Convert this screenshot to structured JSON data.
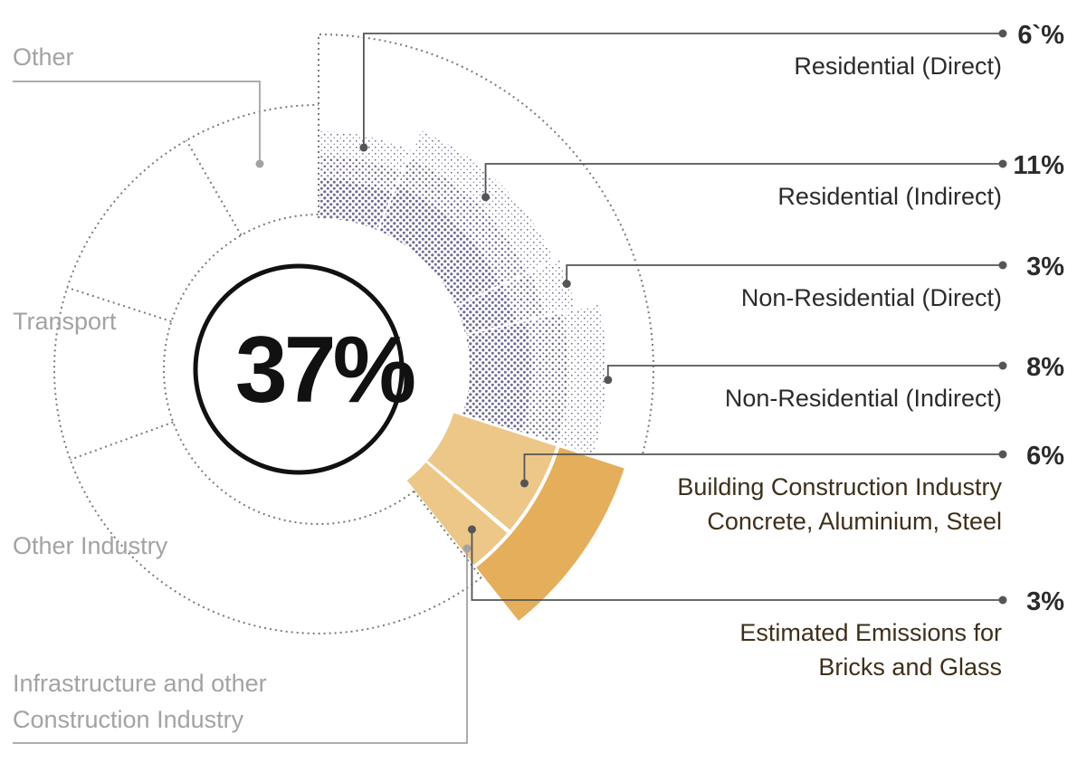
{
  "chart_data": {
    "type": "pie",
    "center_label": "37%",
    "segments": [
      {
        "label": "Residential (Direct)",
        "value_label": "6`%",
        "value": 6,
        "group": "buildings",
        "color": "#6f6c93"
      },
      {
        "label": "Residential (Indirect)",
        "value_label": "11%",
        "value": 11,
        "group": "buildings",
        "color": "#6f6c93"
      },
      {
        "label": "Non-Residential (Direct)",
        "value_label": "3%",
        "value": 3,
        "group": "buildings",
        "color": "#6f6c93"
      },
      {
        "label": "Non-Residential (Indirect)",
        "value_label": "8%",
        "value": 8,
        "group": "buildings",
        "color": "#6f6c93"
      },
      {
        "label_lines": [
          "Building Construction Industry",
          "Concrete, Aluminium, Steel"
        ],
        "value_label": "6%",
        "value": 6,
        "group": "construction",
        "color": "#ecc788"
      },
      {
        "label_lines": [
          "Estimated Emissions for",
          "Bricks and Glass"
        ],
        "value_label": "3%",
        "value": 3,
        "group": "construction",
        "color": "#ecc788"
      }
    ],
    "other_sectors": [
      {
        "label_lines": [
          "Other"
        ]
      },
      {
        "label_lines": [
          "Transport"
        ]
      },
      {
        "label_lines": [
          "Other Industry"
        ]
      },
      {
        "label_lines": [
          "Infrastructure and other",
          "Construction Industry"
        ]
      }
    ],
    "colors": {
      "buildings": "#6f6c93",
      "construction_light": "#ecc788",
      "construction_outer": "#e5ae5a",
      "leader": "#555555",
      "outline": "#7a7a7a",
      "muted_text": "#a3a3a3"
    }
  }
}
